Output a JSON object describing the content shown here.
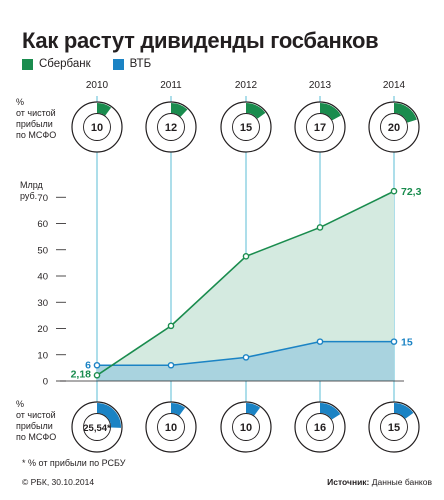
{
  "title": "Как растут дивиденды госбанков",
  "legend": [
    {
      "name": "Сбербанк",
      "color": "#1a8c4e"
    },
    {
      "name": "ВТБ",
      "color": "#1b83c4"
    }
  ],
  "top_ring_label": "%\nот чистой\nприбыли\nпо МСФО",
  "bottom_ring_label": "%\nот чистой\nприбыли\nпо МСФО",
  "units": "Млрд\nруб.",
  "footnote": "* % от прибыли по РСБУ",
  "credit": "© РБК, 30.10.2014",
  "source_label": "Источник:",
  "source_text": "Данные банков",
  "chart_data": {
    "type": "area",
    "title": "Как растут дивиденды госбанков",
    "categories": [
      "2010",
      "2011",
      "2012",
      "2013",
      "2014"
    ],
    "ylabel": "Млрд руб.",
    "ylim": [
      0,
      80
    ],
    "yticks": [
      0,
      10,
      20,
      30,
      40,
      50,
      60,
      70
    ],
    "grid": false,
    "series": [
      {
        "name": "Сбербанк",
        "color": "#1a8c4e",
        "fill": "#d4eae0",
        "values": [
          2.18,
          21,
          47.5,
          58.5,
          72.3
        ],
        "labels": {
          "0": "2,18",
          "4": "72,3"
        },
        "payout_pct": [
          10,
          12,
          15,
          17,
          20
        ],
        "payout_labels": [
          "10",
          "12",
          "15",
          "17",
          "20"
        ]
      },
      {
        "name": "ВТБ",
        "color": "#1b83c4",
        "fill": "#a9d3df",
        "values": [
          6,
          6,
          9,
          15,
          15
        ],
        "labels": {
          "0": "6",
          "4": "15"
        },
        "payout_pct": [
          25.54,
          10,
          10,
          16,
          15
        ],
        "payout_labels": [
          "25,54*",
          "10",
          "10",
          "16",
          "15"
        ]
      }
    ]
  }
}
